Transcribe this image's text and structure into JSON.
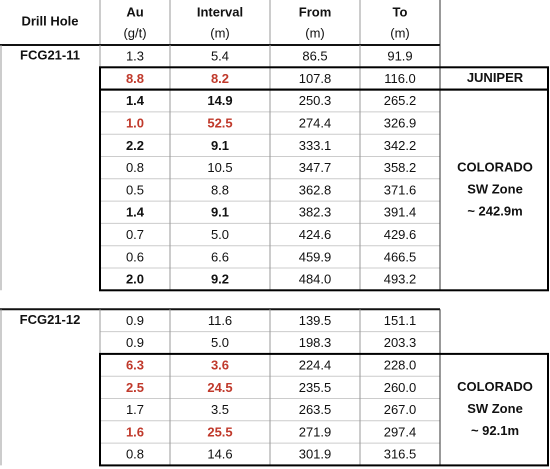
{
  "header": {
    "drill_hole": "Drill Hole",
    "au": [
      "Au",
      "(g/t)"
    ],
    "interval": [
      "Interval",
      "(m)"
    ],
    "from": [
      "From",
      "(m)"
    ],
    "to": [
      "To",
      "(m)"
    ]
  },
  "holes": [
    {
      "name": "FCG21-11",
      "groups": [
        {
          "rows": [
            {
              "au": "1.3",
              "interval": "5.4",
              "from": "86.5",
              "to": "91.9"
            }
          ]
        },
        {
          "zone": [
            "JUNIPER"
          ],
          "rows": [
            {
              "au": "8.8",
              "interval": "8.2",
              "from": "107.8",
              "to": "116.0",
              "highlight": "red"
            }
          ]
        },
        {
          "zone": [
            "COLORADO",
            "SW Zone",
            "~ 242.9m"
          ],
          "rows": [
            {
              "au": "1.4",
              "interval": "14.9",
              "from": "250.3",
              "to": "265.2",
              "highlight": "bold"
            },
            {
              "au": "1.0",
              "interval": "52.5",
              "from": "274.4",
              "to": "326.9",
              "highlight": "red"
            },
            {
              "au": "2.2",
              "interval": "9.1",
              "from": "333.1",
              "to": "342.2",
              "highlight": "bold"
            },
            {
              "au": "0.8",
              "interval": "10.5",
              "from": "347.7",
              "to": "358.2"
            },
            {
              "au": "0.5",
              "interval": "8.8",
              "from": "362.8",
              "to": "371.6"
            },
            {
              "au": "1.4",
              "interval": "9.1",
              "from": "382.3",
              "to": "391.4",
              "highlight": "bold"
            },
            {
              "au": "0.7",
              "interval": "5.0",
              "from": "424.6",
              "to": "429.6"
            },
            {
              "au": "0.6",
              "interval": "6.6",
              "from": "459.9",
              "to": "466.5"
            },
            {
              "au": "2.0",
              "interval": "9.2",
              "from": "484.0",
              "to": "493.2",
              "highlight": "bold"
            }
          ]
        }
      ]
    },
    {
      "name": "FCG21-12",
      "groups": [
        {
          "rows": [
            {
              "au": "0.9",
              "interval": "11.6",
              "from": "139.5",
              "to": "151.1"
            },
            {
              "au": "0.9",
              "interval": "5.0",
              "from": "198.3",
              "to": "203.3"
            }
          ]
        },
        {
          "zone": [
            "COLORADO",
            "SW Zone",
            "~ 92.1m"
          ],
          "rows": [
            {
              "au": "6.3",
              "interval": "3.6",
              "from": "224.4",
              "to": "228.0",
              "highlight": "red"
            },
            {
              "au": "2.5",
              "interval": "24.5",
              "from": "235.5",
              "to": "260.0",
              "highlight": "red"
            },
            {
              "au": "1.7",
              "interval": "3.5",
              "from": "263.5",
              "to": "267.0"
            },
            {
              "au": "1.6",
              "interval": "25.5",
              "from": "271.9",
              "to": "297.4",
              "highlight": "red"
            },
            {
              "au": "0.8",
              "interval": "14.6",
              "from": "301.9",
              "to": "316.5"
            }
          ]
        }
      ]
    }
  ]
}
